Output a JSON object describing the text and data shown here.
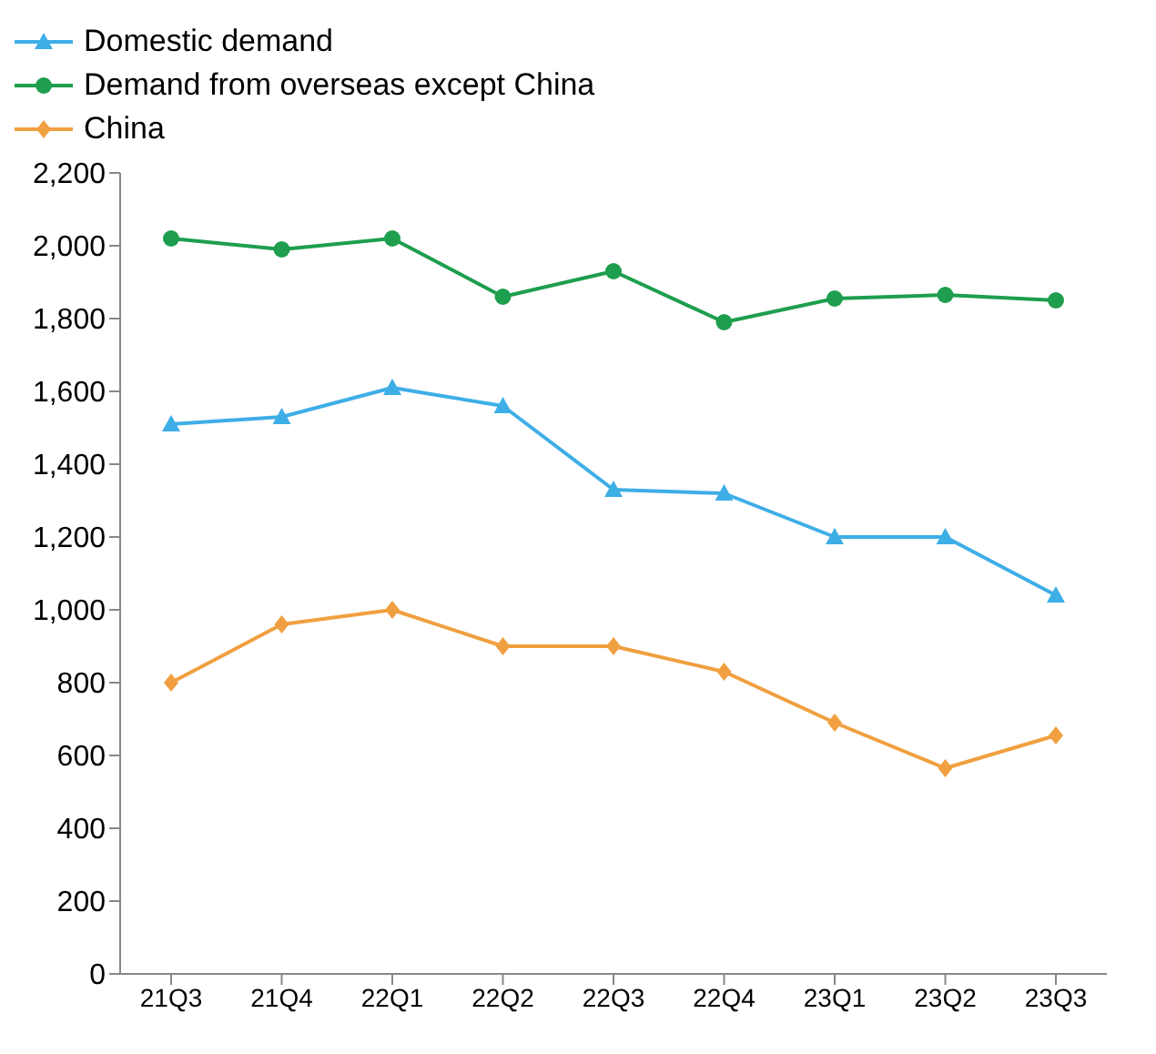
{
  "chart_data": {
    "type": "line",
    "categories": [
      "21Q3",
      "21Q4",
      "22Q1",
      "22Q2",
      "22Q3",
      "22Q4",
      "23Q1",
      "23Q2",
      "23Q3"
    ],
    "series": [
      {
        "name": "Domestic demand",
        "color": "#3eaee6",
        "marker": "triangle",
        "values": [
          1510,
          1530,
          1610,
          1560,
          1330,
          1320,
          1200,
          1200,
          1040
        ]
      },
      {
        "name": "Demand from overseas except China",
        "color": "#1e9e4e",
        "marker": "circle",
        "values": [
          2020,
          1990,
          2020,
          1860,
          1930,
          1790,
          1855,
          1865,
          1850
        ]
      },
      {
        "name": "China",
        "color": "#f0a040",
        "marker": "diamond",
        "values": [
          800,
          960,
          1000,
          900,
          900,
          830,
          690,
          565,
          655
        ]
      }
    ],
    "ylim": [
      0,
      2200
    ],
    "yticks": [
      0,
      200,
      400,
      600,
      800,
      {
        "value": 1000,
        "label": "1,000"
      },
      {
        "value": 1200,
        "label": "1,200"
      },
      {
        "value": 1400,
        "label": "1,400"
      },
      {
        "value": 1600,
        "label": "1,600"
      },
      {
        "value": 1800,
        "label": "1,800"
      },
      {
        "value": 2000,
        "label": "2,000"
      },
      {
        "value": 2200,
        "label": "2,200"
      }
    ],
    "grid": false,
    "legend": "top left"
  }
}
